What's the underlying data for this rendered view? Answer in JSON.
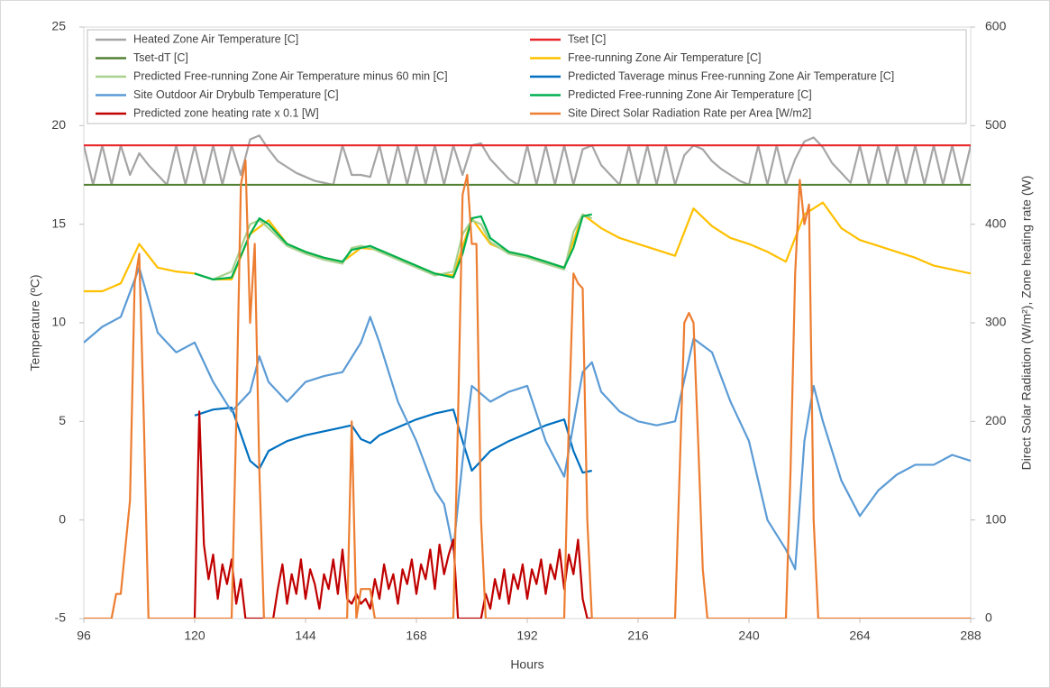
{
  "chart_data": {
    "type": "line",
    "x_label": "Hours",
    "y_label": "Temperature (ºC)",
    "y2_label": "Direct Solar Radiation (W/m²), Zone heating rate (W)",
    "xlim": [
      96,
      288
    ],
    "xticks": [
      96,
      120,
      144,
      168,
      192,
      216,
      240,
      264,
      288
    ],
    "ylim": [
      -5,
      25
    ],
    "yticks": [
      -5,
      0,
      5,
      10,
      15,
      20,
      25
    ],
    "y2lim": [
      0,
      600
    ],
    "y2ticks": [
      0,
      100,
      200,
      300,
      400,
      500,
      600
    ],
    "grid": false,
    "series": [
      {
        "name": "Heated Zone Air Temperature [C]",
        "color": "#a5a5a5",
        "x": [
          96,
          98,
          100,
          102,
          104,
          106,
          108,
          110,
          112,
          114,
          116,
          118,
          120,
          122,
          124,
          126,
          128,
          130,
          132,
          134,
          136,
          138,
          140,
          142,
          144,
          146,
          148,
          150,
          152,
          154,
          156,
          158,
          160,
          162,
          164,
          166,
          168,
          170,
          172,
          174,
          176,
          178,
          180,
          182,
          184,
          186,
          188,
          190,
          192,
          194,
          196,
          198,
          200,
          202,
          204,
          206,
          208,
          210,
          212,
          214,
          216,
          218,
          220,
          222,
          224,
          226,
          228,
          230,
          232,
          234,
          236,
          238,
          240,
          242,
          244,
          246,
          248,
          250,
          252,
          254,
          256,
          258,
          260,
          262,
          264,
          266,
          268,
          270,
          272,
          274,
          276,
          278,
          280,
          282,
          284,
          286,
          288
        ],
        "values": [
          19,
          17,
          19,
          17,
          19,
          17.5,
          18.6,
          18,
          17.5,
          17,
          19,
          17,
          19,
          17,
          19,
          17,
          19,
          17.5,
          19.3,
          19.5,
          18.8,
          18.2,
          17.9,
          17.6,
          17.4,
          17.2,
          17.1,
          17,
          19,
          17.5,
          17.5,
          17.4,
          19,
          17,
          19,
          17,
          19,
          17,
          19,
          17,
          19,
          17.5,
          19,
          19.1,
          18.3,
          17.8,
          17.3,
          17,
          19,
          17,
          19,
          17,
          19,
          17,
          18.8,
          19,
          18,
          17.5,
          17,
          19,
          17,
          19,
          17,
          19,
          17,
          18.5,
          19,
          18.8,
          18.2,
          17.8,
          17.5,
          17.2,
          17,
          19,
          17,
          19,
          17,
          18.3,
          19.2,
          19.4,
          18.9,
          18.1,
          17.6,
          17.1,
          19,
          17,
          19,
          17,
          19,
          17,
          19,
          17,
          19,
          17,
          19,
          17,
          19
        ]
      },
      {
        "name": "Tset [C]",
        "color": "#e8272a",
        "x": [
          96,
          288
        ],
        "values": [
          19,
          19
        ]
      },
      {
        "name": "Tset-dT [C]",
        "color": "#548235",
        "x": [
          96,
          288
        ],
        "values": [
          17,
          17
        ]
      },
      {
        "name": "Free-running Zone Air Temperature [C]",
        "color": "#ffc000",
        "x": [
          96,
          100,
          104,
          108,
          112,
          116,
          120,
          124,
          128,
          132,
          136,
          140,
          144,
          148,
          152,
          156,
          160,
          164,
          168,
          172,
          176,
          180,
          184,
          188,
          192,
          196,
          200,
          204,
          208,
          212,
          216,
          220,
          224,
          228,
          232,
          236,
          240,
          244,
          248,
          252,
          256,
          260,
          264,
          268,
          272,
          276,
          280,
          284,
          288
        ],
        "values": [
          11.6,
          11.6,
          12,
          14,
          12.8,
          12.6,
          12.5,
          12.2,
          12.2,
          14.5,
          15.2,
          14,
          13.6,
          13.3,
          13.1,
          13.8,
          13.7,
          13.3,
          12.9,
          12.5,
          12.4,
          15.3,
          14,
          13.6,
          13.4,
          13.1,
          12.8,
          15.5,
          14.8,
          14.3,
          14,
          13.7,
          13.4,
          15.8,
          14.9,
          14.3,
          14,
          13.6,
          13.1,
          15.5,
          16.1,
          14.8,
          14.2,
          13.9,
          13.6,
          13.3,
          12.9,
          12.7,
          12.5
        ]
      },
      {
        "name": "Predicted Free-running Zone Air Temperature minus 60 min [C]",
        "color": "#a9d18e",
        "x": [
          120,
          124,
          128,
          132,
          134,
          136,
          140,
          144,
          148,
          152,
          154,
          156,
          158,
          160,
          164,
          168,
          172,
          176,
          178,
          180,
          182,
          184,
          188,
          192,
          196,
          200,
          202,
          204,
          206
        ],
        "values": [
          12.5,
          12.2,
          12.6,
          15,
          15.2,
          14.8,
          13.9,
          13.5,
          13.2,
          13,
          13.8,
          13.9,
          13.8,
          13.6,
          13.2,
          12.8,
          12.4,
          12.6,
          14.5,
          15.2,
          15,
          14.1,
          13.5,
          13.3,
          13,
          12.7,
          14.6,
          15.5,
          15.3
        ]
      },
      {
        "name": "Predicted Taverage minus Free-running Zone Air Temperature [C]",
        "color": "#0070c0",
        "x": [
          120,
          124,
          128,
          132,
          134,
          136,
          140,
          144,
          148,
          152,
          154,
          156,
          158,
          160,
          164,
          168,
          172,
          176,
          178,
          180,
          182,
          184,
          188,
          192,
          196,
          200,
          202,
          204,
          206
        ],
        "values": [
          5.3,
          5.6,
          5.7,
          3,
          2.6,
          3.5,
          4,
          4.3,
          4.5,
          4.7,
          4.8,
          4.1,
          3.9,
          4.3,
          4.7,
          5.1,
          5.4,
          5.6,
          4,
          2.5,
          3,
          3.5,
          4,
          4.4,
          4.8,
          5.1,
          3.5,
          2.4,
          2.5
        ]
      },
      {
        "name": "Site Outdoor Air Drybulb Temperature [C]",
        "color": "#5b9bd5",
        "x": [
          96,
          100,
          104,
          108,
          112,
          116,
          120,
          124,
          128,
          132,
          134,
          136,
          140,
          144,
          148,
          152,
          156,
          158,
          160,
          164,
          168,
          172,
          174,
          176,
          178,
          180,
          184,
          188,
          192,
          196,
          200,
          204,
          206,
          208,
          212,
          216,
          220,
          224,
          228,
          232,
          236,
          240,
          244,
          248,
          250,
          252,
          254,
          256,
          260,
          264,
          268,
          272,
          276,
          280,
          284,
          288
        ],
        "values": [
          9,
          9.8,
          10.3,
          12.8,
          9.5,
          8.5,
          9,
          7,
          5.5,
          6.5,
          8.3,
          7,
          6,
          7,
          7.3,
          7.5,
          9,
          10.3,
          9,
          6,
          4,
          1.5,
          0.8,
          -1.5,
          3,
          6.8,
          6,
          6.5,
          6.8,
          4,
          2.2,
          7.5,
          8,
          6.5,
          5.5,
          5,
          4.8,
          5,
          9.2,
          8.5,
          6,
          4,
          0,
          -1.5,
          -2.5,
          4,
          6.8,
          5,
          2,
          0.2,
          1.5,
          2.3,
          2.8,
          2.8,
          3.3,
          3
        ]
      },
      {
        "name": "Predicted Free-running Zone Air Temperature [C]",
        "color": "#00b050",
        "x": [
          120,
          124,
          128,
          132,
          134,
          136,
          140,
          144,
          148,
          152,
          154,
          156,
          158,
          160,
          164,
          168,
          172,
          176,
          178,
          180,
          182,
          184,
          188,
          192,
          196,
          200,
          202,
          204,
          206
        ],
        "values": [
          12.5,
          12.2,
          12.3,
          14.5,
          15.3,
          15,
          14,
          13.6,
          13.3,
          13.1,
          13.7,
          13.8,
          13.9,
          13.7,
          13.3,
          12.9,
          12.5,
          12.3,
          13.5,
          15.3,
          15.4,
          14.3,
          13.6,
          13.4,
          13.1,
          12.8,
          13.8,
          15.4,
          15.5
        ]
      },
      {
        "name": "Predicted zone heating rate x 0.1 [W]",
        "color": "#c00000",
        "axis": "y2",
        "x": [
          120,
          121,
          122,
          123,
          124,
          125,
          126,
          127,
          128,
          129,
          130,
          131,
          137,
          138,
          139,
          140,
          141,
          142,
          143,
          144,
          145,
          146,
          147,
          148,
          149,
          150,
          151,
          152,
          153,
          154,
          155,
          156,
          157,
          158,
          159,
          160,
          161,
          162,
          163,
          164,
          165,
          166,
          167,
          168,
          169,
          170,
          171,
          172,
          173,
          174,
          175,
          176,
          177,
          182,
          183,
          184,
          185,
          186,
          187,
          188,
          189,
          190,
          191,
          192,
          193,
          194,
          195,
          196,
          197,
          198,
          199,
          200,
          201,
          202,
          203,
          204,
          205,
          206
        ],
        "values": [
          0,
          210,
          75,
          40,
          65,
          20,
          55,
          35,
          60,
          15,
          40,
          0,
          0,
          30,
          55,
          15,
          45,
          25,
          60,
          20,
          50,
          35,
          10,
          45,
          30,
          60,
          25,
          70,
          20,
          15,
          25,
          15,
          20,
          10,
          40,
          20,
          55,
          30,
          45,
          15,
          50,
          35,
          60,
          25,
          55,
          40,
          70,
          30,
          75,
          45,
          65,
          80,
          0,
          0,
          25,
          10,
          40,
          20,
          50,
          15,
          45,
          30,
          55,
          20,
          50,
          35,
          60,
          25,
          55,
          40,
          70,
          30,
          65,
          45,
          80,
          20,
          0,
          0
        ]
      },
      {
        "name": "Site Direct Solar Radiation Rate per Area [W/m2]",
        "color": "#ed7d31",
        "axis": "y2",
        "x": [
          96,
          102,
          103,
          104,
          106,
          107,
          108,
          109,
          110,
          128,
          129,
          130,
          131,
          132,
          133,
          134,
          135,
          153,
          154,
          155,
          156,
          157,
          158,
          159,
          176,
          177,
          178,
          179,
          180,
          181,
          182,
          183,
          200,
          201,
          202,
          203,
          204,
          205,
          206,
          224,
          225,
          226,
          227,
          228,
          229,
          230,
          231,
          248,
          249,
          250,
          251,
          252,
          253,
          254,
          255,
          288
        ],
        "values": [
          0,
          0,
          25,
          25,
          120,
          340,
          370,
          200,
          0,
          0,
          200,
          440,
          465,
          300,
          380,
          150,
          0,
          0,
          200,
          0,
          30,
          30,
          30,
          0,
          0,
          200,
          430,
          450,
          380,
          380,
          100,
          0,
          0,
          200,
          350,
          340,
          335,
          100,
          0,
          0,
          150,
          300,
          310,
          300,
          180,
          50,
          0,
          0,
          150,
          350,
          445,
          400,
          420,
          100,
          0,
          0
        ]
      }
    ]
  }
}
